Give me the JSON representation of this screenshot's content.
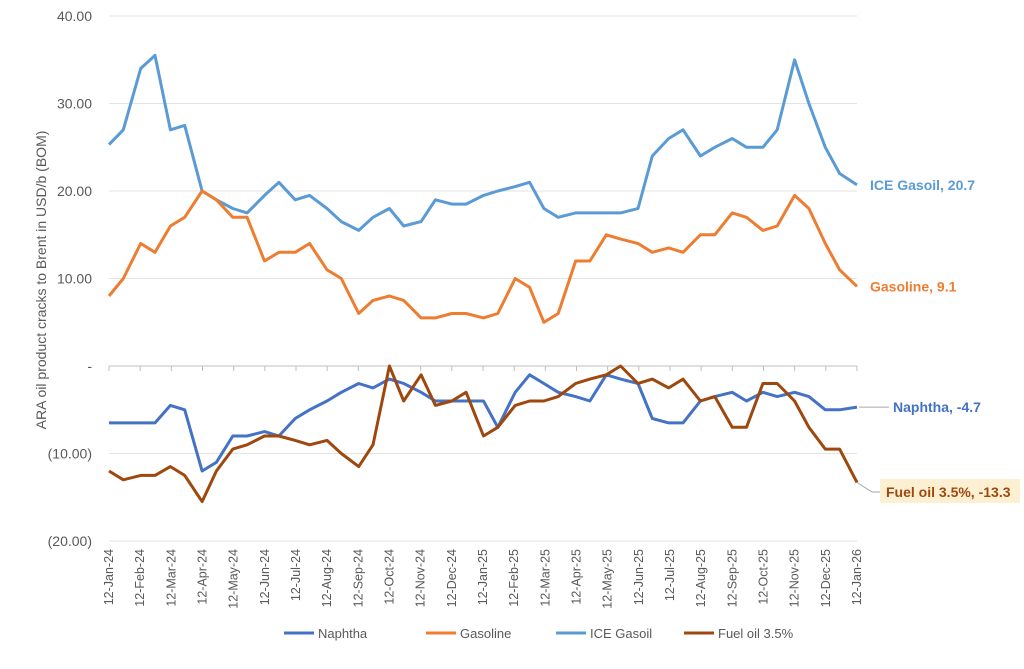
{
  "chart_data": {
    "type": "line",
    "title": "",
    "xlabel": "",
    "ylabel": "ARA oil product cracks to Brent in USD/b (BOM)",
    "ylim": [
      -20,
      40
    ],
    "yticks": [
      40,
      30,
      20,
      10,
      0,
      -10,
      -20
    ],
    "ytick_labels": [
      "40.00",
      "30.00",
      "20.00",
      "10.00",
      "-",
      "(10.00)",
      "(20.00)"
    ],
    "xtick_labels": [
      "12-Jan-24",
      "12-Feb-24",
      "12-Mar-24",
      "12-Apr-24",
      "12-May-24",
      "12-Jun-24",
      "12-Jul-24",
      "12-Aug-24",
      "12-Sep-24",
      "12-Oct-24",
      "12-Nov-24",
      "12-Dec-24",
      "12-Jan-25",
      "12-Feb-25",
      "12-Mar-25",
      "12-Apr-25",
      "12-May-25",
      "12-Jun-25",
      "12-Jul-25",
      "12-Aug-25",
      "12-Sep-25",
      "12-Oct-25",
      "12-Nov-25",
      "12-Dec-25",
      "12-Jan-26"
    ],
    "grid": true,
    "legend": "bottom",
    "x": [
      "2024-01-12",
      "2024-01-26",
      "2024-02-12",
      "2024-02-26",
      "2024-03-12",
      "2024-03-26",
      "2024-04-12",
      "2024-04-26",
      "2024-05-12",
      "2024-05-26",
      "2024-06-12",
      "2024-06-26",
      "2024-07-12",
      "2024-07-26",
      "2024-08-12",
      "2024-08-26",
      "2024-09-12",
      "2024-09-26",
      "2024-10-12",
      "2024-10-26",
      "2024-11-12",
      "2024-11-26",
      "2024-12-12",
      "2024-12-26",
      "2025-01-12",
      "2025-01-26",
      "2025-02-12",
      "2025-02-26",
      "2025-03-12",
      "2025-03-26",
      "2025-04-12",
      "2025-04-26",
      "2025-05-12",
      "2025-05-26",
      "2025-06-12",
      "2025-06-26",
      "2025-07-12",
      "2025-07-26",
      "2025-08-12",
      "2025-08-26",
      "2025-09-12",
      "2025-09-26",
      "2025-10-12",
      "2025-10-26",
      "2025-11-12",
      "2025-11-26",
      "2025-12-12",
      "2025-12-26",
      "2026-01-12"
    ],
    "series": [
      {
        "name": "Naphtha",
        "color": "#4472c4",
        "end_label": "Naphtha, -4.7",
        "values": [
          -6.5,
          -6.5,
          -6.5,
          -6.5,
          -4.5,
          -5,
          -12,
          -11,
          -8,
          -8,
          -7.5,
          -8,
          -6,
          -5,
          -4,
          -3,
          -2,
          -2.5,
          -1.5,
          -2,
          -3,
          -4,
          -4,
          -4,
          -4,
          -7,
          -3,
          -1,
          -2,
          -3,
          -3.5,
          -4,
          -1,
          -1.5,
          -2,
          -6,
          -6.5,
          -6.5,
          -4,
          -3.5,
          -3,
          -4,
          -3,
          -3.5,
          -3,
          -3.5,
          -5,
          -5,
          -4.7
        ]
      },
      {
        "name": "Gasoline",
        "color": "#ed7d31",
        "end_label": "Gasoline, 9.1",
        "values": [
          8,
          10,
          14,
          13,
          16,
          17,
          20,
          19,
          17,
          17,
          12,
          13,
          13,
          14,
          11,
          10,
          6,
          7.5,
          8,
          7.5,
          5.5,
          5.5,
          6,
          6,
          5.5,
          6,
          10,
          9,
          5,
          6,
          12,
          12,
          15,
          14.5,
          14,
          13,
          13.5,
          13,
          15,
          15,
          17.5,
          17,
          15.5,
          16,
          19.5,
          18,
          14,
          11,
          9.1
        ]
      },
      {
        "name": "ICE Gasoil",
        "color": "#5b9bd5",
        "end_label": "ICE Gasoil, 20.7",
        "values": [
          25.3,
          27,
          34,
          35.5,
          27,
          27.5,
          20,
          19,
          18,
          17.5,
          19.5,
          21,
          19,
          19.5,
          18,
          16.5,
          15.5,
          17,
          18,
          16,
          16.5,
          19,
          18.5,
          18.5,
          19.5,
          20,
          20.5,
          21,
          18,
          17,
          17.5,
          17.5,
          17.5,
          17.5,
          18,
          24,
          26,
          27,
          24,
          25,
          26,
          25,
          25,
          27,
          35,
          30,
          25,
          22,
          20.7
        ]
      },
      {
        "name": "Fuel oil 3.5%",
        "color": "#9e480e",
        "end_label": "Fuel oil 3.5%, -13.3",
        "values": [
          -12,
          -13,
          -12.5,
          -12.5,
          -11.5,
          -12.5,
          -15.5,
          -12,
          -9.5,
          -9,
          -8,
          -8,
          -8.5,
          -9,
          -8.5,
          -10,
          -11.5,
          -9,
          0,
          -4,
          -1,
          -4.5,
          -4,
          -3,
          -8,
          -7,
          -4.5,
          -4,
          -4,
          -3.5,
          -2,
          -1.5,
          -1,
          0,
          -2,
          -1.5,
          -2.5,
          -1.5,
          -4,
          -3.5,
          -7,
          -7,
          -2,
          -2,
          -4,
          -7,
          -9.5,
          -9.5,
          -13.3
        ]
      }
    ]
  }
}
